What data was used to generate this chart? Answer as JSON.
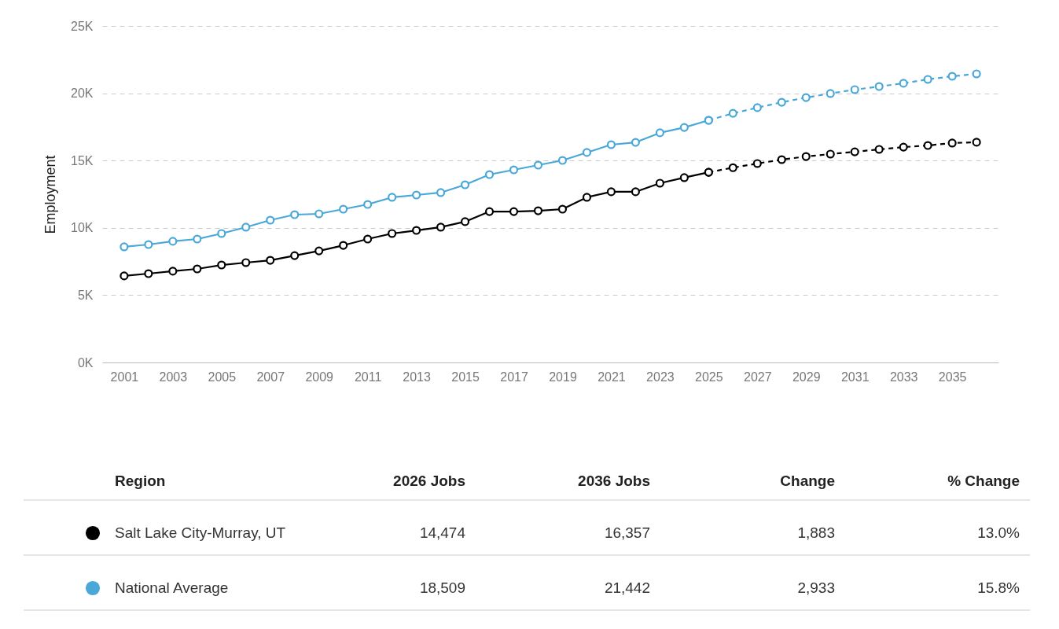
{
  "chart_data": [
    {
      "type": "line",
      "ylabel": "Employment",
      "xlim": [
        2000.1,
        2036.9
      ],
      "xticks": [
        2001,
        2003,
        2005,
        2007,
        2009,
        2011,
        2013,
        2015,
        2017,
        2019,
        2021,
        2023,
        2025,
        2027,
        2029,
        2031,
        2033,
        2035
      ],
      "ylim": [
        0,
        25000
      ],
      "yticks": [
        {
          "value": 0,
          "label": "0K"
        },
        {
          "value": 5000,
          "label": "5K"
        },
        {
          "value": 10000,
          "label": "10K"
        },
        {
          "value": 15000,
          "label": "15K"
        },
        {
          "value": 20000,
          "label": "20K"
        },
        {
          "value": 25000,
          "label": "25K"
        }
      ],
      "grid": "y",
      "marker": "circle",
      "series": [
        {
          "color": "#000000",
          "line_style": "solid",
          "x": [
            2001,
            2002,
            2003,
            2004,
            2005,
            2006,
            2007,
            2008,
            2009,
            2010,
            2011,
            2012,
            2013,
            2014,
            2015,
            2016,
            2017,
            2018,
            2019,
            2020,
            2021,
            2022,
            2023,
            2024,
            2025
          ],
          "values": [
            6430,
            6600,
            6780,
            6950,
            7240,
            7420,
            7590,
            7940,
            8290,
            8700,
            9170,
            9580,
            9810,
            10050,
            10460,
            11210,
            11210,
            11270,
            11390,
            12270,
            12680,
            12680,
            13320,
            13730,
            14130
          ]
        },
        {
          "color": "#000000",
          "line_style": "dashed",
          "x": [
            2025,
            2026,
            2027,
            2028,
            2029,
            2030,
            2031,
            2032,
            2033,
            2034,
            2035,
            2036
          ],
          "values": [
            14130,
            14470,
            14780,
            15070,
            15300,
            15480,
            15650,
            15830,
            16000,
            16120,
            16300,
            16360
          ]
        },
        {
          "color": "#4aa8d8",
          "line_style": "solid",
          "x": [
            2001,
            2002,
            2003,
            2004,
            2005,
            2006,
            2007,
            2008,
            2009,
            2010,
            2011,
            2012,
            2013,
            2014,
            2015,
            2016,
            2017,
            2018,
            2019,
            2020,
            2021,
            2022,
            2023,
            2024,
            2025
          ],
          "values": [
            8590,
            8760,
            9000,
            9170,
            9580,
            10050,
            10570,
            10980,
            11040,
            11390,
            11740,
            12270,
            12440,
            12620,
            13200,
            13960,
            14310,
            14660,
            15010,
            15600,
            16180,
            16350,
            17060,
            17460,
            17990
          ]
        },
        {
          "color": "#4aa8d8",
          "line_style": "dashed",
          "x": [
            2025,
            2026,
            2027,
            2028,
            2029,
            2030,
            2031,
            2032,
            2033,
            2034,
            2035,
            2036
          ],
          "values": [
            17990,
            18510,
            18930,
            19330,
            19680,
            19980,
            20270,
            20500,
            20740,
            21030,
            21260,
            21440
          ]
        }
      ]
    },
    {
      "type": "other",
      "legend_title": "Region",
      "categories": [
        "2026 Jobs",
        "2036 Jobs",
        "Change",
        "% Change"
      ],
      "series": [
        {
          "name": "Salt Lake City-Murray, UT",
          "color": "#000000",
          "values": [
            14474,
            16357,
            1883,
            13.0
          ],
          "value_labels": [
            "14,474",
            "16,357",
            "1,883",
            "13.0%"
          ]
        },
        {
          "name": "National Average",
          "color": "#4aa8d8",
          "values": [
            18509,
            21442,
            2933,
            15.8
          ],
          "value_labels": [
            "18,509",
            "21,442",
            "2,933",
            "15.8%"
          ]
        }
      ]
    }
  ]
}
